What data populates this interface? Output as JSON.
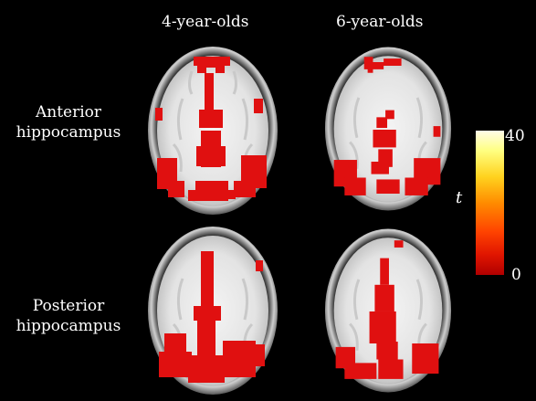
{
  "column_titles": [
    "4-year-olds",
    "6-year-olds"
  ],
  "row_labels": [
    {
      "line1": "Anterior",
      "line2": "hippocampus"
    },
    {
      "line1": "Posterior",
      "line2": "hippocampus"
    }
  ],
  "colorbar": {
    "label": "t",
    "max_label": "40",
    "min_label": "0",
    "colors": [
      "#fffbe8",
      "#ffff80",
      "#ffd21e",
      "#ff8c00",
      "#ff4300",
      "#e01500",
      "#b00000"
    ]
  },
  "panels": [
    {
      "row": "Anterior hippocampus",
      "column": "4-year-olds"
    },
    {
      "row": "Anterior hippocampus",
      "column": "6-year-olds"
    },
    {
      "row": "Posterior hippocampus",
      "column": "4-year-olds"
    },
    {
      "row": "Posterior hippocampus",
      "column": "6-year-olds"
    }
  ]
}
